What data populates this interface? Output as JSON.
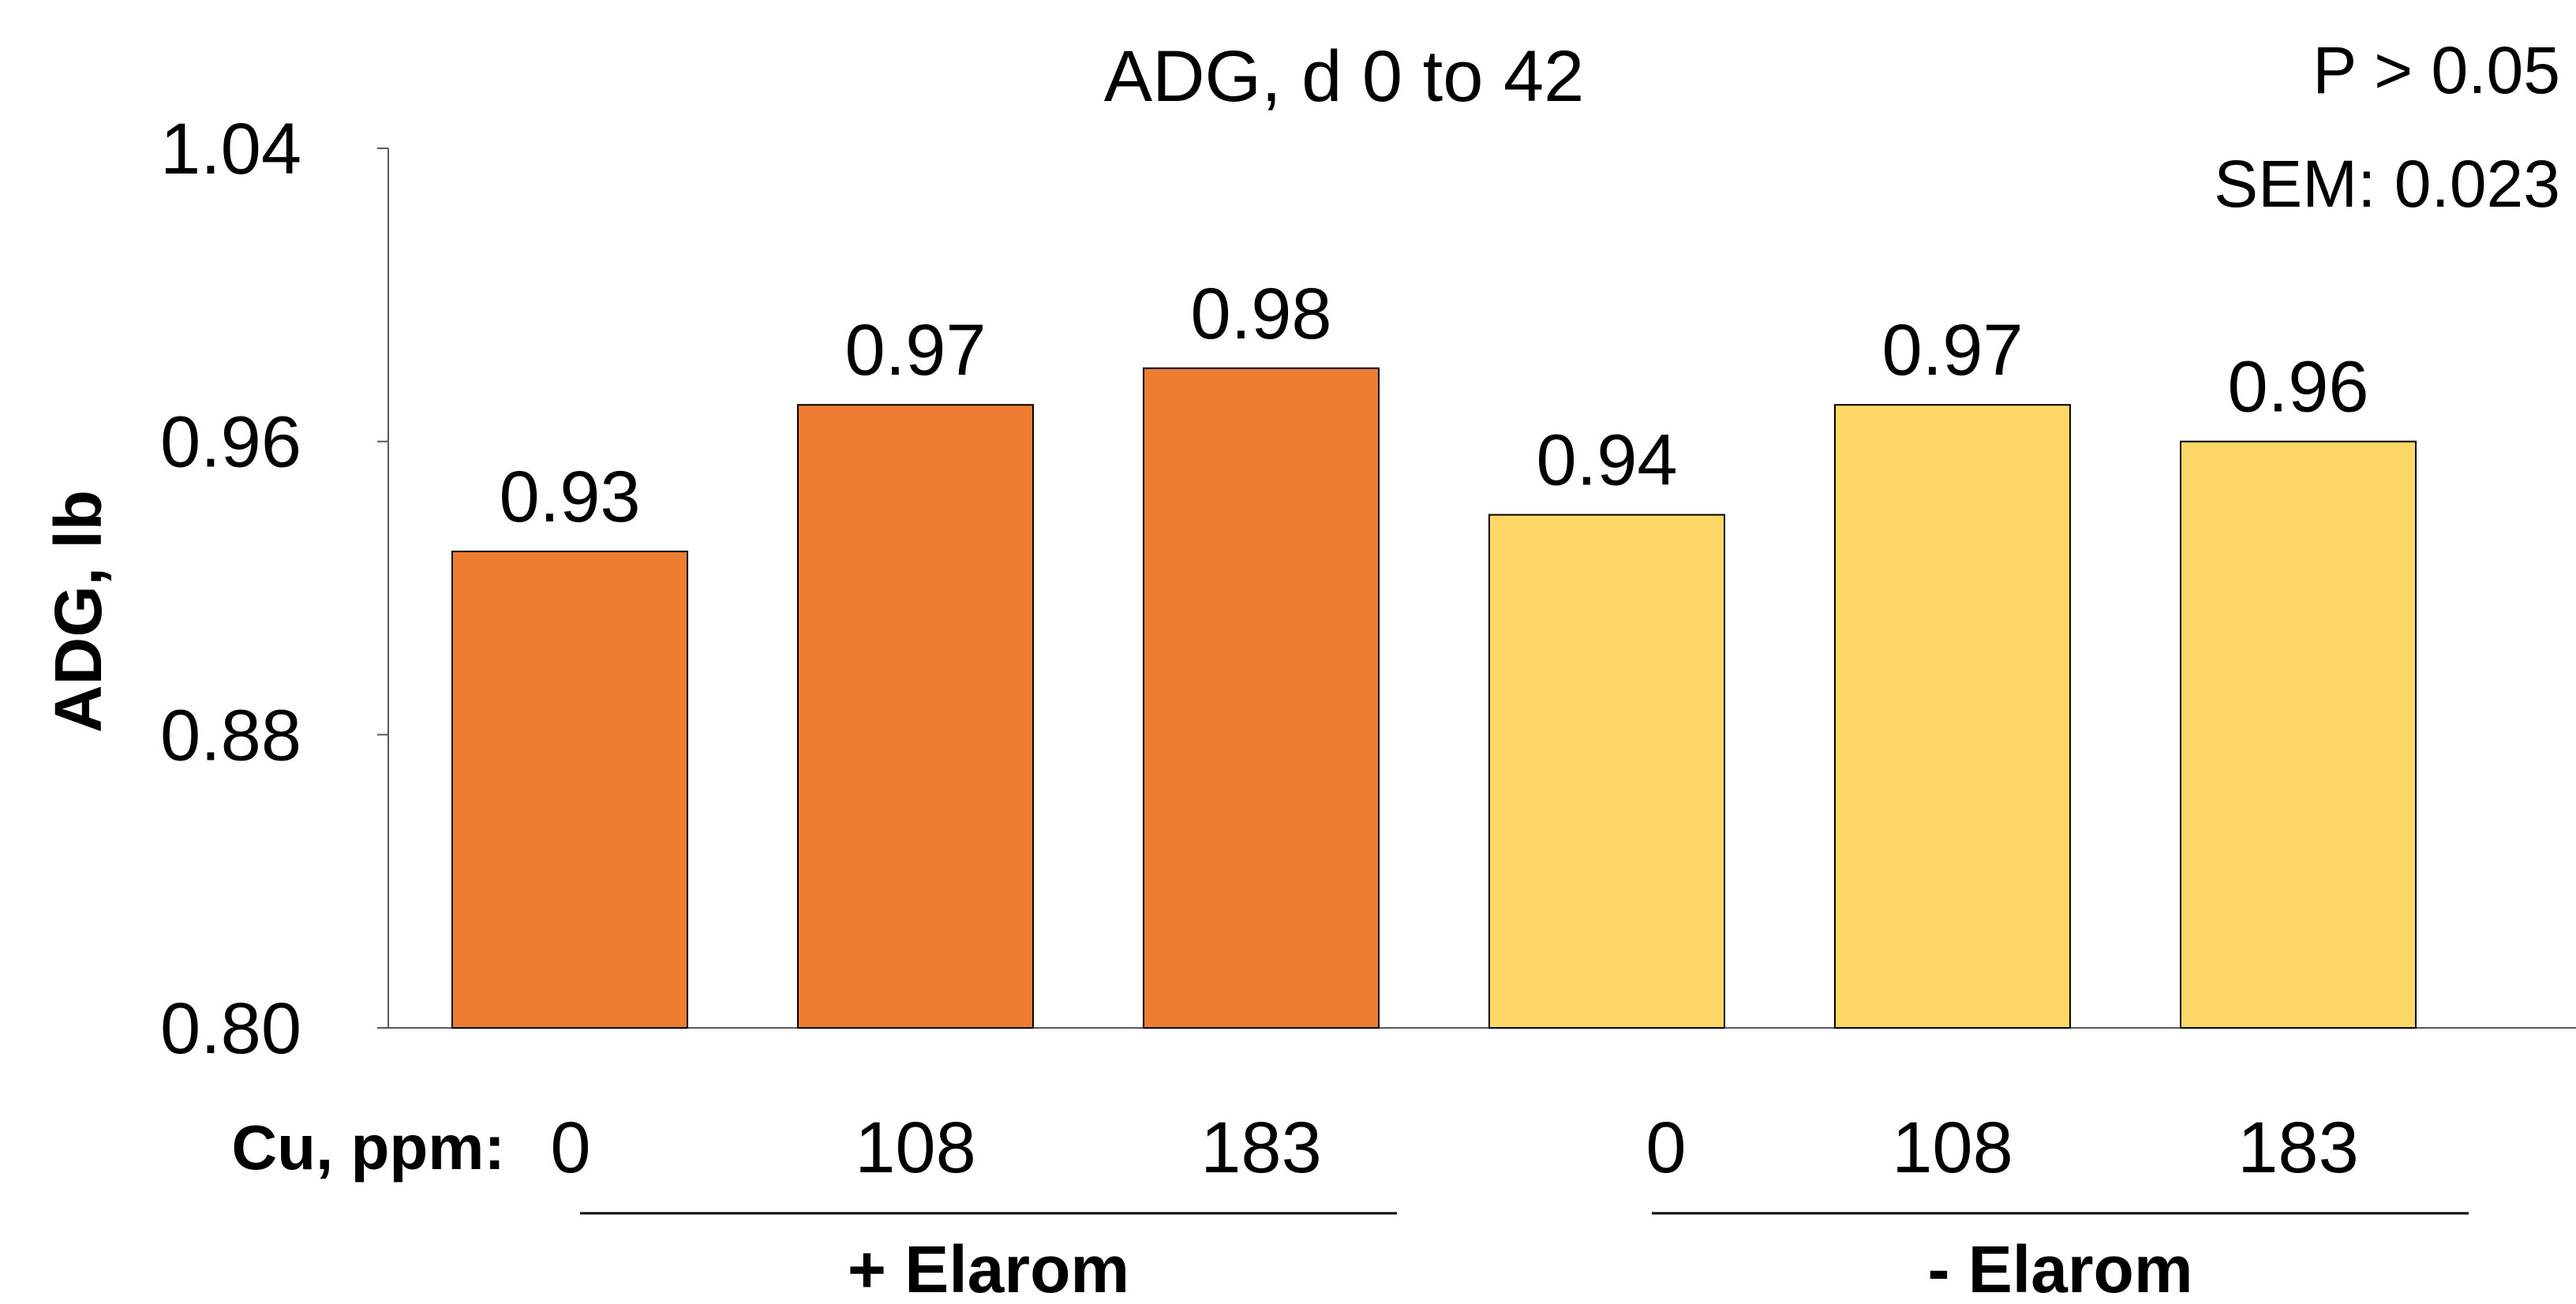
{
  "chart_data": {
    "type": "bar",
    "title": "ADG, d 0 to 42",
    "ylabel": "ADG, lb",
    "xlabel": "Cu, ppm:",
    "ylim": [
      0.8,
      1.04
    ],
    "yticks": [
      "0.80",
      "0.88",
      "0.96",
      "1.04"
    ],
    "categories": [
      "0",
      "108",
      "183",
      "0",
      "108",
      "183"
    ],
    "values": [
      0.93,
      0.97,
      0.98,
      0.94,
      0.97,
      0.96
    ],
    "value_labels": [
      "0.93",
      "0.97",
      "0.98",
      "0.94",
      "0.97",
      "0.96"
    ],
    "groups": [
      {
        "label": "+ Elarom",
        "indices": [
          0,
          1,
          2
        ],
        "color": "#ED7D31"
      },
      {
        "label": "- Elarom",
        "indices": [
          3,
          4,
          5
        ],
        "color": "#FDD866"
      }
    ],
    "annotations": [
      "P > 0.05",
      "SEM: 0.023"
    ],
    "grid": false,
    "legend": "none"
  }
}
